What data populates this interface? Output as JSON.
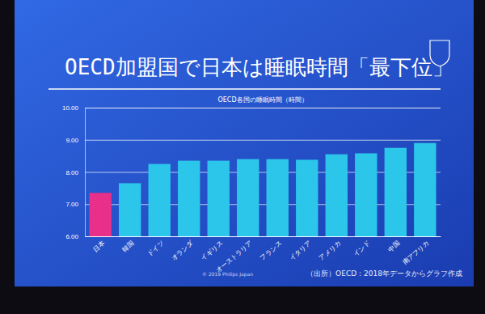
{
  "chart_data": {
    "type": "bar",
    "title": "OECD加盟国で日本は睡眠時間「最下位」",
    "subtitle": "OECD各国の睡眠時間（時間）",
    "annotations": [
      "（出所）OECD：2018年データからグラフ作成",
      "© 2019 Philips Japan"
    ],
    "categories": [
      "日本",
      "韓国",
      "ドイツ",
      "オランダ",
      "イギリス",
      "オーストラリア",
      "フランス",
      "イタリア",
      "アメリカ",
      "インド",
      "中国",
      "南アフリカ"
    ],
    "values": [
      7.35,
      7.65,
      8.25,
      8.35,
      8.35,
      8.4,
      8.4,
      8.38,
      8.55,
      8.58,
      8.75,
      8.9
    ],
    "colors": [
      "#e8308a",
      "#2cc6ea",
      "#2cc6ea",
      "#2cc6ea",
      "#2cc6ea",
      "#2cc6ea",
      "#2cc6ea",
      "#2cc6ea",
      "#2cc6ea",
      "#2cc6ea",
      "#2cc6ea",
      "#2cc6ea"
    ],
    "ylim": [
      6,
      10
    ],
    "yticks": [
      {
        "value": 6,
        "label": "6.00"
      },
      {
        "value": 7,
        "label": "7.00"
      },
      {
        "value": 8,
        "label": "8.00"
      },
      {
        "value": 9,
        "label": "9.00"
      },
      {
        "value": 10,
        "label": "10.00"
      }
    ],
    "grid": true
  }
}
